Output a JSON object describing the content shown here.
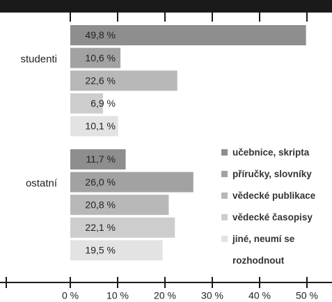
{
  "chart_data": {
    "type": "barh",
    "categories": [
      "studenti",
      "ostatní"
    ],
    "series": [
      {
        "name": "učebnice, skripta",
        "color": "#8e8e8e",
        "values": [
          49.8,
          11.7
        ],
        "value_labels": [
          "49,8 %",
          "11,7 %"
        ]
      },
      {
        "name": "příručky, slovníky",
        "color": "#a2a2a2",
        "values": [
          10.6,
          26.0
        ],
        "value_labels": [
          "10,6 %",
          "26,0 %"
        ]
      },
      {
        "name": "vědecké publikace",
        "color": "#b8b8b8",
        "values": [
          22.6,
          20.8
        ],
        "value_labels": [
          "22,6 %",
          "20,8 %"
        ]
      },
      {
        "name": "vědecké časopisy",
        "color": "#cdcdcd",
        "values": [
          6.9,
          22.1
        ],
        "value_labels": [
          "6,9 %",
          "22,1 %"
        ]
      },
      {
        "name": "jiné, neumí se rozhodnout",
        "color": "#e3e3e3",
        "values": [
          10.1,
          19.5
        ],
        "value_labels": [
          "10,1 %",
          "19,5 %"
        ]
      }
    ],
    "xlim": [
      0,
      50
    ],
    "xticks": [
      {
        "value": 0,
        "label": "0 %"
      },
      {
        "value": 10,
        "label": "10 %"
      },
      {
        "value": 20,
        "label": "20 %"
      },
      {
        "value": 30,
        "label": "30 %"
      },
      {
        "value": 40,
        "label": "40 %"
      },
      {
        "value": 50,
        "label": "50 %"
      }
    ]
  }
}
